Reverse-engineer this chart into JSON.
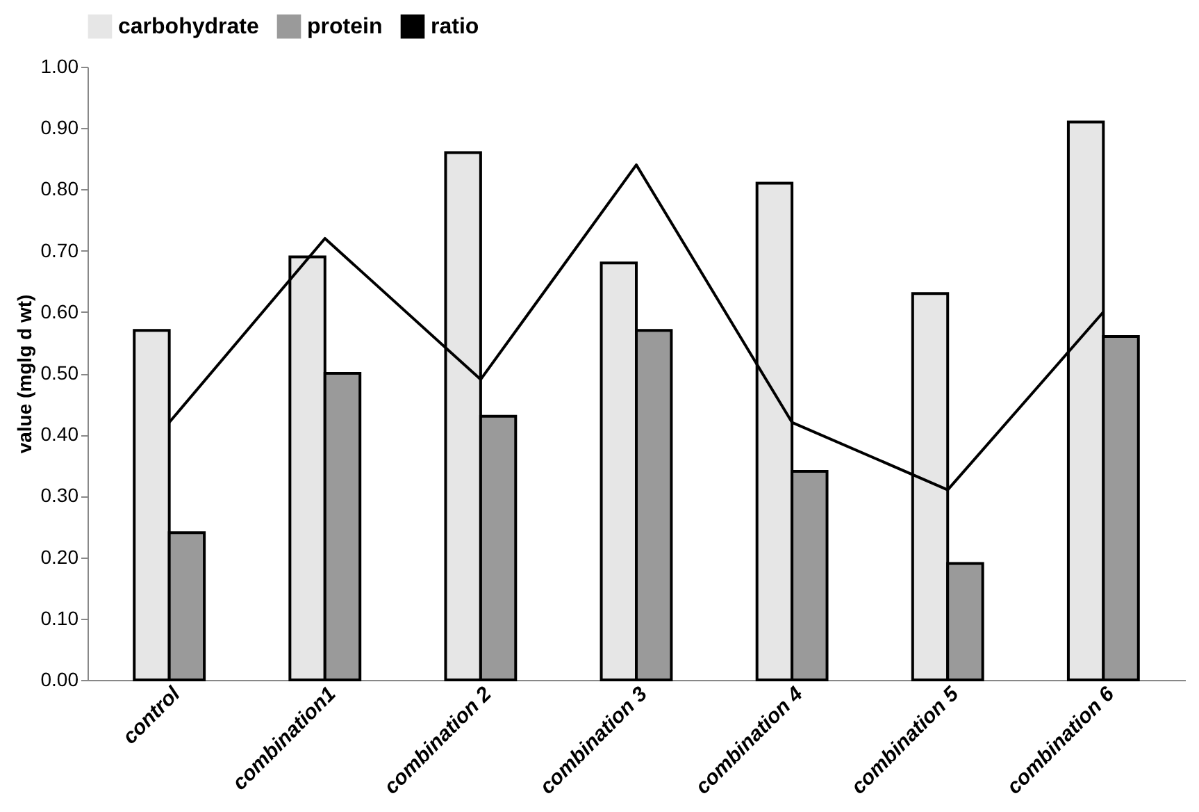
{
  "chart_data": {
    "type": "bar",
    "ylabel": "value (mglg d wt)",
    "categories": [
      "control",
      "combination1",
      "combination 2",
      "combination 3",
      "combination 4",
      "combination 5",
      "combination 6"
    ],
    "series": [
      {
        "name": "carbohydrate",
        "color": "#e6e6e6",
        "values": [
          0.57,
          0.69,
          0.86,
          0.68,
          0.81,
          0.63,
          0.91
        ]
      },
      {
        "name": "protein",
        "color": "#9a9a9a",
        "values": [
          0.24,
          0.5,
          0.43,
          0.57,
          0.34,
          0.19,
          0.56
        ]
      },
      {
        "name": "ratio",
        "type": "line",
        "color": "#000000",
        "values": [
          0.42,
          0.72,
          0.49,
          0.84,
          0.42,
          0.31,
          0.6
        ]
      }
    ],
    "ylim": [
      0,
      1
    ],
    "yticks": [
      {
        "value": 0,
        "label": "0.00"
      },
      {
        "value": 0.1,
        "label": "0.10"
      },
      {
        "value": 0.2,
        "label": "0.20"
      },
      {
        "value": 0.3,
        "label": "0.30"
      },
      {
        "value": 0.4,
        "label": "0.40"
      },
      {
        "value": 0.5,
        "label": "0.50"
      },
      {
        "value": 0.6,
        "label": "0.60"
      },
      {
        "value": 0.7,
        "label": "0.70"
      },
      {
        "value": 0.8,
        "label": "0.80"
      },
      {
        "value": 0.9,
        "label": "0.90"
      },
      {
        "value": 1,
        "label": "1.00"
      }
    ],
    "grid": false,
    "legend": "top",
    "line_style": "solid",
    "marker": "none"
  }
}
